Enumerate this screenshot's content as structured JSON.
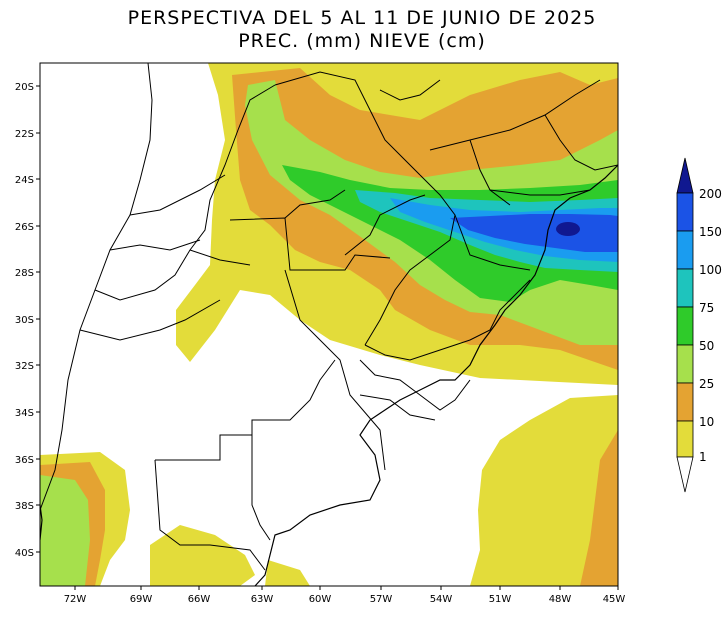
{
  "title": {
    "line1": "PERSPECTIVA DEL 5 AL 11 DE JUNIO DE 2025",
    "line2": "PREC. (mm) NIEVE (cm)"
  },
  "axes": {
    "latitude_labels": [
      "20S",
      "22S",
      "24S",
      "26S",
      "28S",
      "30S",
      "32S",
      "34S",
      "36S",
      "38S",
      "40S"
    ],
    "longitude_labels": [
      "72W",
      "69W",
      "66W",
      "63W",
      "60W",
      "57W",
      "54W",
      "51W",
      "48W",
      "45W"
    ]
  },
  "legend": {
    "levels": [
      "1",
      "10",
      "25",
      "50",
      "75",
      "100",
      "150",
      "200"
    ],
    "colors": {
      "c1": "#e3dc3a",
      "c10": "#e4a332",
      "c25": "#a6e04c",
      "c50": "#2fcb2a",
      "c75": "#1ec4bd",
      "c100": "#1a9cf0",
      "c150": "#1b53e6",
      "c200": "#101890"
    }
  }
}
